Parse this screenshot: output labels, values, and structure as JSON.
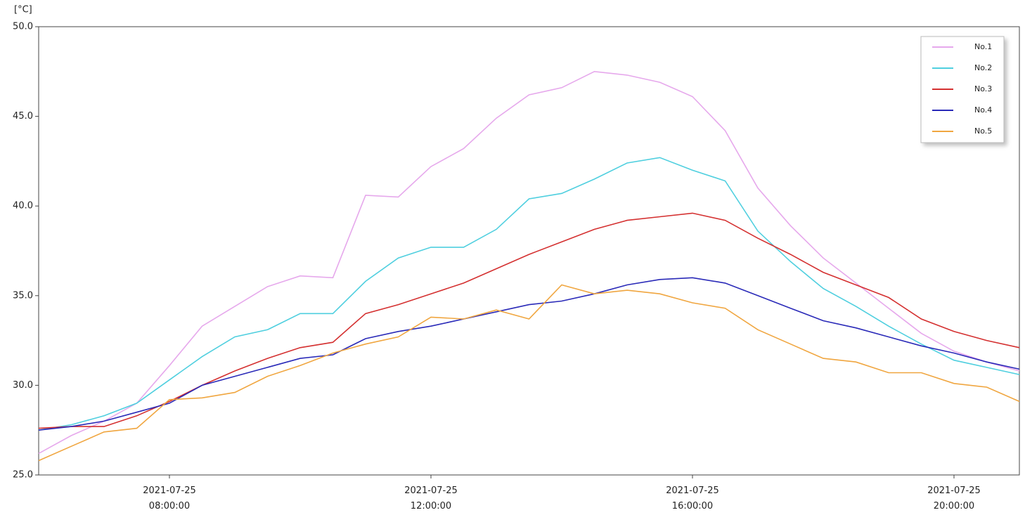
{
  "chart_data": {
    "type": "line",
    "y_label": "[°C]",
    "x": [
      "2021-07-25T06:00:00",
      "2021-07-25T06:30:00",
      "2021-07-25T07:00:00",
      "2021-07-25T07:30:00",
      "2021-07-25T08:00:00",
      "2021-07-25T08:30:00",
      "2021-07-25T09:00:00",
      "2021-07-25T09:30:00",
      "2021-07-25T10:00:00",
      "2021-07-25T10:30:00",
      "2021-07-25T11:00:00",
      "2021-07-25T11:30:00",
      "2021-07-25T12:00:00",
      "2021-07-25T12:30:00",
      "2021-07-25T13:00:00",
      "2021-07-25T13:30:00",
      "2021-07-25T14:00:00",
      "2021-07-25T14:30:00",
      "2021-07-25T15:00:00",
      "2021-07-25T15:30:00",
      "2021-07-25T16:00:00",
      "2021-07-25T16:30:00",
      "2021-07-25T17:00:00",
      "2021-07-25T17:30:00",
      "2021-07-25T18:00:00",
      "2021-07-25T18:30:00",
      "2021-07-25T19:00:00",
      "2021-07-25T19:30:00",
      "2021-07-25T20:00:00",
      "2021-07-25T20:30:00",
      "2021-07-25T21:00:00"
    ],
    "series": [
      {
        "name": "No.1",
        "color": "#e6a8ec",
        "values": [
          26.2,
          27.2,
          28.0,
          29.0,
          31.1,
          33.3,
          34.4,
          35.5,
          36.1,
          36.0,
          40.6,
          40.5,
          42.2,
          43.2,
          44.9,
          46.2,
          46.6,
          47.5,
          47.3,
          46.9,
          46.1,
          44.2,
          41.0,
          38.9,
          37.1,
          35.7,
          34.3,
          32.9,
          31.9,
          31.3,
          30.8
        ]
      },
      {
        "name": "No.2",
        "color": "#4fcfdf",
        "values": [
          27.5,
          27.8,
          28.3,
          29.0,
          30.3,
          31.6,
          32.7,
          33.1,
          34.0,
          34.0,
          35.8,
          37.1,
          37.7,
          37.7,
          38.7,
          40.4,
          40.7,
          41.5,
          42.4,
          42.7,
          42.0,
          41.4,
          38.6,
          36.9,
          35.4,
          34.4,
          33.3,
          32.3,
          31.4,
          31.0,
          30.6
        ]
      },
      {
        "name": "No.3",
        "color": "#d43030",
        "values": [
          27.6,
          27.7,
          27.7,
          28.3,
          29.1,
          30.0,
          30.8,
          31.5,
          32.1,
          32.4,
          34.0,
          34.5,
          35.1,
          35.7,
          36.5,
          37.3,
          38.0,
          38.7,
          39.2,
          39.4,
          39.6,
          39.2,
          38.2,
          37.3,
          36.3,
          35.6,
          34.9,
          33.7,
          33.0,
          32.5,
          32.1
        ]
      },
      {
        "name": "No.4",
        "color": "#2a2ab8",
        "values": [
          27.5,
          27.7,
          28.0,
          28.5,
          29.0,
          30.0,
          30.5,
          31.0,
          31.5,
          31.7,
          32.6,
          33.0,
          33.3,
          33.7,
          34.1,
          34.5,
          34.7,
          35.1,
          35.6,
          35.9,
          36.0,
          35.7,
          35.0,
          34.3,
          33.6,
          33.2,
          32.7,
          32.2,
          31.8,
          31.3,
          30.9
        ]
      },
      {
        "name": "No.5",
        "color": "#f0a640",
        "values": [
          25.8,
          26.6,
          27.4,
          27.6,
          29.2,
          29.3,
          29.6,
          30.5,
          31.1,
          31.8,
          32.3,
          32.7,
          33.8,
          33.7,
          34.2,
          33.7,
          35.6,
          35.1,
          35.3,
          35.1,
          34.6,
          34.3,
          33.1,
          32.3,
          31.5,
          31.3,
          30.7,
          30.7,
          30.1,
          29.9,
          29.1
        ]
      }
    ],
    "xlim": [
      "2021-07-25T06:00:00",
      "2021-07-25T21:00:00"
    ],
    "xticks": [
      {
        "value": "2021-07-25T08:00:00",
        "label": "2021-07-25 08:00:00"
      },
      {
        "value": "2021-07-25T12:00:00",
        "label": "2021-07-25 12:00:00"
      },
      {
        "value": "2021-07-25T16:00:00",
        "label": "2021-07-25 16:00:00"
      },
      {
        "value": "2021-07-25T20:00:00",
        "label": "2021-07-25 20:00:00"
      }
    ],
    "ylim": [
      25,
      50
    ],
    "yticks": [
      {
        "value": 25,
        "label": "25.0"
      },
      {
        "value": 30,
        "label": "30.0"
      },
      {
        "value": 35,
        "label": "35.0"
      },
      {
        "value": 40,
        "label": "40.0"
      },
      {
        "value": 45,
        "label": "45.0"
      },
      {
        "value": 50,
        "label": "50.0"
      }
    ],
    "grid": false,
    "legend": "upper right"
  }
}
